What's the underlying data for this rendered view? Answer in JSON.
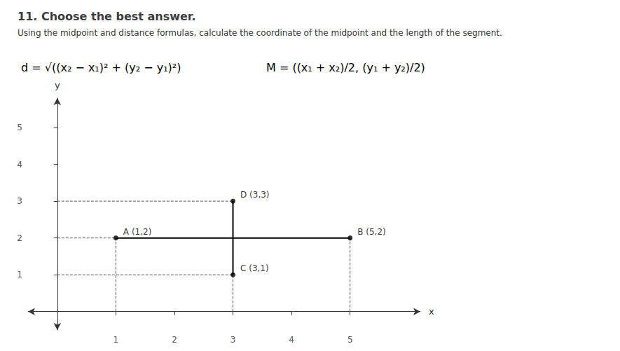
{
  "chart_data": {
    "type": "scatter",
    "title": "11. Choose the best answer.",
    "subtitle": "Using the midpoint and distance formulas, calculate the coordinate of the midpoint and the length of the segment.",
    "annotations": [
      "d = √((x₂ − x₁)² + (y₂ − y₁)²)",
      "M = ((x₁ + x₂)/2, (y₁ + y₂)/2)"
    ],
    "x_label": "x",
    "y_label": "y",
    "xlim": [
      -0.5,
      6.2
    ],
    "ylim": [
      -0.5,
      5.8
    ],
    "xticks": [
      1,
      2,
      3,
      4,
      5
    ],
    "yticks": [
      1,
      2,
      3,
      4,
      5
    ],
    "grid": false,
    "series": [
      {
        "type": "line",
        "line_style": "dashed",
        "color": "#555555",
        "x": [
          0,
          1
        ],
        "values": [
          2,
          2
        ]
      },
      {
        "type": "line",
        "line_style": "dashed",
        "color": "#555555",
        "x": [
          0,
          3
        ],
        "values": [
          3,
          3
        ]
      },
      {
        "type": "line",
        "line_style": "dashed",
        "color": "#555555",
        "x": [
          0,
          3
        ],
        "values": [
          1,
          1
        ]
      },
      {
        "type": "line",
        "line_style": "dashed",
        "color": "#555555",
        "x": [
          1,
          1
        ],
        "values": [
          0,
          2
        ]
      },
      {
        "type": "line",
        "line_style": "dashed",
        "color": "#555555",
        "x": [
          3,
          3
        ],
        "values": [
          0,
          1
        ]
      },
      {
        "type": "line",
        "line_style": "dashed",
        "color": "#555555",
        "x": [
          5,
          5
        ],
        "values": [
          0,
          2
        ]
      },
      {
        "type": "line",
        "line_style": "solid",
        "color": "#000000",
        "x": [
          1,
          5
        ],
        "values": [
          2,
          2
        ]
      },
      {
        "type": "line",
        "line_style": "solid",
        "color": "#000000",
        "x": [
          3,
          3
        ],
        "values": [
          1,
          3
        ]
      },
      {
        "type": "scatter",
        "marker": "circle",
        "color": "#000000",
        "data_labels": true,
        "x": [
          1,
          5,
          3,
          3
        ],
        "values": [
          2,
          2,
          1,
          3
        ],
        "value_labels": [
          "A (1,2)",
          "B (5,2)",
          "C (3,1)",
          "D (3,3)"
        ]
      }
    ]
  }
}
